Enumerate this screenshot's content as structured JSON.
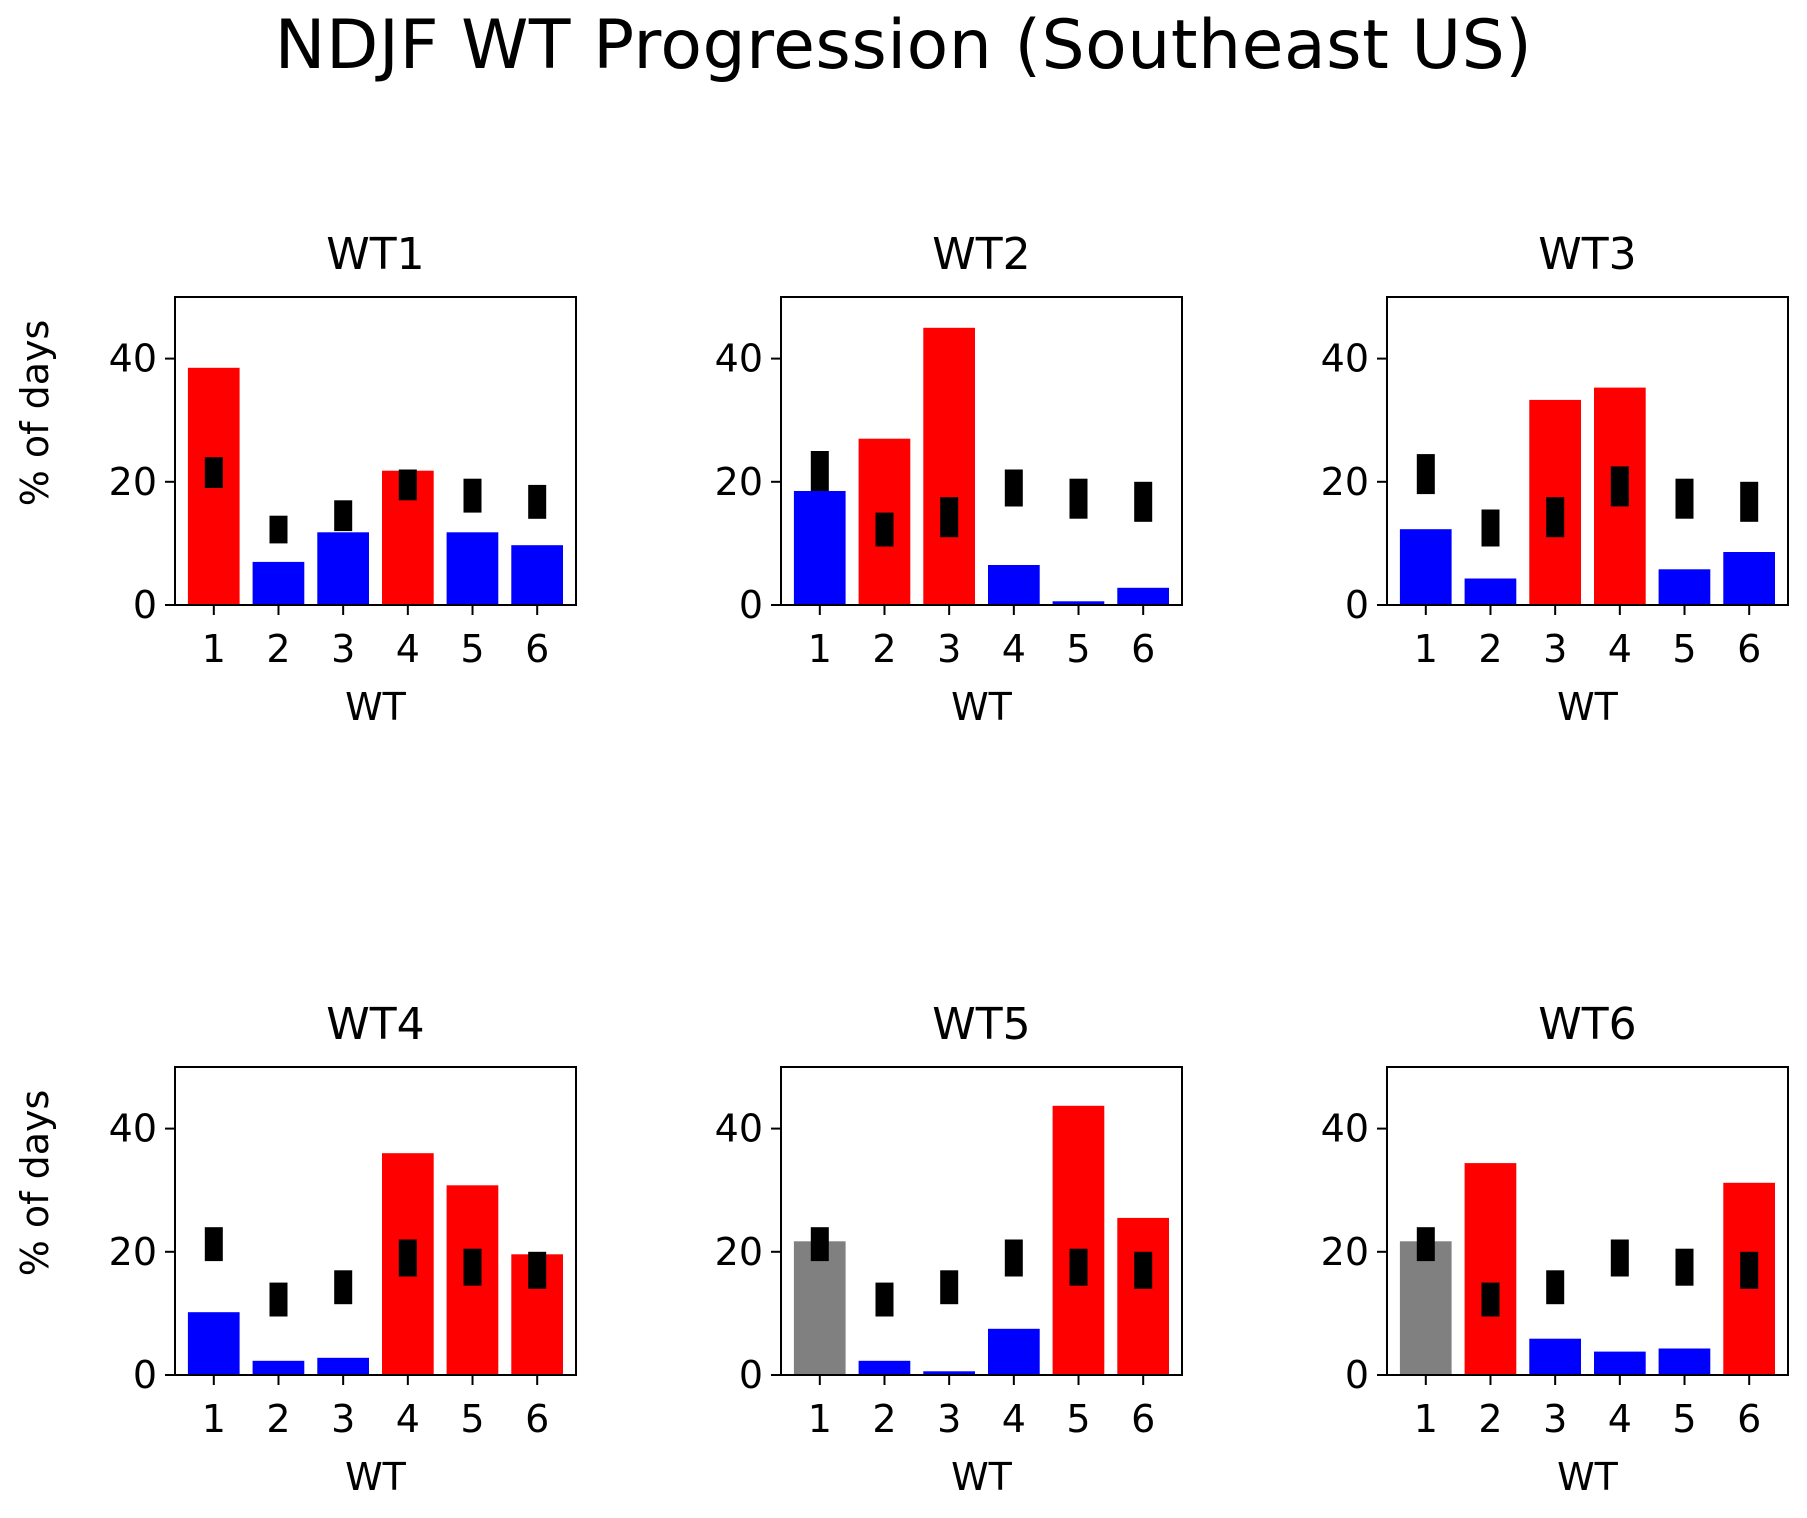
{
  "figure": {
    "title": "NDJF WT Progression (Southeast US)"
  },
  "colors": {
    "above": "#ff0000",
    "below": "#0000ff",
    "neutral": "#808080",
    "range": "#000000"
  },
  "chart_data": [
    {
      "type": "bar",
      "title": "WT1",
      "xlabel": "WT",
      "ylabel": "% of days",
      "categories": [
        "1",
        "2",
        "3",
        "4",
        "5",
        "6"
      ],
      "values": [
        38.5,
        7,
        11.8,
        21.8,
        11.8,
        9.7
      ],
      "colors": [
        "red",
        "blue",
        "blue",
        "red",
        "blue",
        "blue"
      ],
      "expected_range": [
        [
          19,
          24
        ],
        [
          10,
          14.5
        ],
        [
          12,
          17
        ],
        [
          17,
          22
        ],
        [
          15,
          20.5
        ],
        [
          14,
          19.5
        ]
      ],
      "ylim": [
        0,
        50
      ],
      "yticks": [
        0,
        20,
        40
      ]
    },
    {
      "type": "bar",
      "title": "WT2",
      "xlabel": "WT",
      "ylabel": "",
      "categories": [
        "1",
        "2",
        "3",
        "4",
        "5",
        "6"
      ],
      "values": [
        18.5,
        27,
        45,
        6.5,
        0.6,
        2.8
      ],
      "colors": [
        "blue",
        "red",
        "red",
        "blue",
        "blue",
        "blue"
      ],
      "expected_range": [
        [
          18.5,
          25
        ],
        [
          9.5,
          15
        ],
        [
          11,
          17.5
        ],
        [
          16,
          22
        ],
        [
          14,
          20.5
        ],
        [
          13.5,
          20
        ]
      ],
      "ylim": [
        0,
        50
      ],
      "yticks": [
        0,
        20,
        40
      ]
    },
    {
      "type": "bar",
      "title": "WT3",
      "xlabel": "WT",
      "ylabel": "",
      "categories": [
        "1",
        "2",
        "3",
        "4",
        "5",
        "6"
      ],
      "values": [
        12.3,
        4.3,
        33.3,
        35.3,
        5.8,
        8.6
      ],
      "colors": [
        "blue",
        "blue",
        "red",
        "red",
        "blue",
        "blue"
      ],
      "expected_range": [
        [
          18,
          24.5
        ],
        [
          9.5,
          15.5
        ],
        [
          11,
          17.5
        ],
        [
          16,
          22.5
        ],
        [
          14,
          20.5
        ],
        [
          13.5,
          20
        ]
      ],
      "ylim": [
        0,
        50
      ],
      "yticks": [
        0,
        20,
        40
      ]
    },
    {
      "type": "bar",
      "title": "WT4",
      "xlabel": "WT",
      "ylabel": "% of days",
      "categories": [
        "1",
        "2",
        "3",
        "4",
        "5",
        "6"
      ],
      "values": [
        10.2,
        2.3,
        2.8,
        36,
        30.8,
        19.6
      ],
      "colors": [
        "blue",
        "blue",
        "blue",
        "red",
        "red",
        "red"
      ],
      "expected_range": [
        [
          18.5,
          24
        ],
        [
          9.5,
          15
        ],
        [
          11.5,
          17
        ],
        [
          16,
          22
        ],
        [
          14.5,
          20.5
        ],
        [
          14,
          20
        ]
      ],
      "ylim": [
        0,
        50
      ],
      "yticks": [
        0,
        20,
        40
      ]
    },
    {
      "type": "bar",
      "title": "WT5",
      "xlabel": "WT",
      "ylabel": "",
      "categories": [
        "1",
        "2",
        "3",
        "4",
        "5",
        "6"
      ],
      "values": [
        21.7,
        2.3,
        0.6,
        7.5,
        43.7,
        25.5
      ],
      "colors": [
        "gray",
        "blue",
        "blue",
        "blue",
        "red",
        "red"
      ],
      "expected_range": [
        [
          18.5,
          24
        ],
        [
          9.5,
          15
        ],
        [
          11.5,
          17
        ],
        [
          16,
          22
        ],
        [
          14.5,
          20.5
        ],
        [
          14,
          20
        ]
      ],
      "ylim": [
        0,
        50
      ],
      "yticks": [
        0,
        20,
        40
      ]
    },
    {
      "type": "bar",
      "title": "WT6",
      "xlabel": "WT",
      "ylabel": "",
      "categories": [
        "1",
        "2",
        "3",
        "4",
        "5",
        "6"
      ],
      "values": [
        21.7,
        34.4,
        5.9,
        3.8,
        4.3,
        31.2
      ],
      "colors": [
        "gray",
        "red",
        "blue",
        "blue",
        "blue",
        "red"
      ],
      "expected_range": [
        [
          18.5,
          24
        ],
        [
          9.5,
          15
        ],
        [
          11.5,
          17
        ],
        [
          16,
          22
        ],
        [
          14.5,
          20.5
        ],
        [
          14,
          20
        ]
      ],
      "ylim": [
        0,
        50
      ],
      "yticks": [
        0,
        20,
        40
      ]
    }
  ]
}
